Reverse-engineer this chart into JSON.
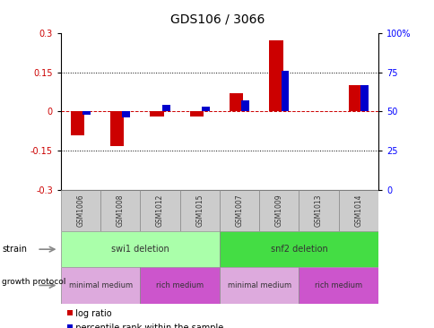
{
  "title": "GDS106 / 3066",
  "samples": [
    "GSM1006",
    "GSM1008",
    "GSM1012",
    "GSM1015",
    "GSM1007",
    "GSM1009",
    "GSM1013",
    "GSM1014"
  ],
  "log_ratio": [
    -0.09,
    -0.13,
    -0.02,
    -0.02,
    0.07,
    0.27,
    0.0,
    0.1
  ],
  "percentile_rank": [
    48,
    46,
    54,
    53,
    57,
    76,
    50,
    67
  ],
  "ylim_left": [
    -0.3,
    0.3
  ],
  "ylim_right": [
    0,
    100
  ],
  "yticks_left": [
    -0.3,
    -0.15,
    0,
    0.15,
    0.3
  ],
  "yticks_right": [
    0,
    25,
    50,
    75,
    100
  ],
  "strain_groups": [
    {
      "label": "swi1 deletion",
      "start": 0,
      "end": 4,
      "color": "#aaffaa"
    },
    {
      "label": "snf2 deletion",
      "start": 4,
      "end": 8,
      "color": "#44dd44"
    }
  ],
  "growth_protocol_groups": [
    {
      "label": "minimal medium",
      "start": 0,
      "end": 2,
      "color": "#ddaadd"
    },
    {
      "label": "rich medium",
      "start": 2,
      "end": 4,
      "color": "#cc55cc"
    },
    {
      "label": "minimal medium",
      "start": 4,
      "end": 6,
      "color": "#ddaadd"
    },
    {
      "label": "rich medium",
      "start": 6,
      "end": 8,
      "color": "#cc55cc"
    }
  ],
  "red_color": "#cc0000",
  "blue_color": "#0000cc",
  "zero_line_color": "#cc0000",
  "sample_box_color": "#cccccc",
  "legend_items": [
    {
      "label": "log ratio",
      "color": "#cc0000"
    },
    {
      "label": "percentile rank within the sample",
      "color": "#0000cc"
    }
  ]
}
